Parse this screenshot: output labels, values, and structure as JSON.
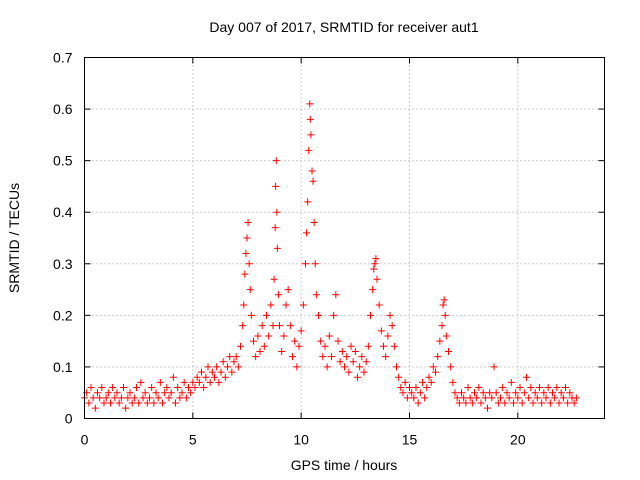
{
  "chart_data": {
    "type": "scatter",
    "title": "Day 007 of 2017, SRMTID for receiver aut1",
    "xlabel": "GPS time / hours",
    "ylabel": "SRMTID / TECUs",
    "xlim": [
      0,
      24
    ],
    "ylim": [
      0,
      0.7
    ],
    "xticks": [
      0,
      5,
      10,
      15,
      20
    ],
    "xtick_labels": [
      "0",
      "5",
      "10",
      "15",
      "20"
    ],
    "yticks": [
      0,
      0.1,
      0.2,
      0.3,
      0.4,
      0.5,
      0.6,
      0.7
    ],
    "ytick_labels": [
      "0",
      "0.1",
      "0.2",
      "0.3",
      "0.4",
      "0.5",
      "0.6",
      "0.7"
    ],
    "grid": true,
    "marker": "plus",
    "color": "#ff0000",
    "series": [
      {
        "name": "aut1",
        "points": [
          [
            0.0,
            0.04
          ],
          [
            0.1,
            0.05
          ],
          [
            0.2,
            0.03
          ],
          [
            0.3,
            0.06
          ],
          [
            0.4,
            0.04
          ],
          [
            0.5,
            0.02
          ],
          [
            0.6,
            0.05
          ],
          [
            0.7,
            0.04
          ],
          [
            0.8,
            0.06
          ],
          [
            0.9,
            0.03
          ],
          [
            1.0,
            0.04
          ],
          [
            1.1,
            0.05
          ],
          [
            1.2,
            0.03
          ],
          [
            1.3,
            0.06
          ],
          [
            1.4,
            0.04
          ],
          [
            1.5,
            0.05
          ],
          [
            1.6,
            0.03
          ],
          [
            1.7,
            0.04
          ],
          [
            1.8,
            0.06
          ],
          [
            1.9,
            0.02
          ],
          [
            2.0,
            0.04
          ],
          [
            2.1,
            0.05
          ],
          [
            2.2,
            0.03
          ],
          [
            2.3,
            0.04
          ],
          [
            2.4,
            0.06
          ],
          [
            2.5,
            0.03
          ],
          [
            2.6,
            0.07
          ],
          [
            2.7,
            0.04
          ],
          [
            2.8,
            0.05
          ],
          [
            2.9,
            0.03
          ],
          [
            3.0,
            0.04
          ],
          [
            3.1,
            0.06
          ],
          [
            3.2,
            0.03
          ],
          [
            3.3,
            0.05
          ],
          [
            3.4,
            0.04
          ],
          [
            3.5,
            0.07
          ],
          [
            3.6,
            0.03
          ],
          [
            3.7,
            0.05
          ],
          [
            3.8,
            0.06
          ],
          [
            3.9,
            0.04
          ],
          [
            4.0,
            0.05
          ],
          [
            4.1,
            0.08
          ],
          [
            4.2,
            0.03
          ],
          [
            4.3,
            0.06
          ],
          [
            4.4,
            0.04
          ],
          [
            4.5,
            0.05
          ],
          [
            4.6,
            0.07
          ],
          [
            4.7,
            0.04
          ],
          [
            4.8,
            0.06
          ],
          [
            4.9,
            0.05
          ],
          [
            5.0,
            0.07
          ],
          [
            5.1,
            0.06
          ],
          [
            5.2,
            0.08
          ],
          [
            5.3,
            0.07
          ],
          [
            5.4,
            0.09
          ],
          [
            5.5,
            0.06
          ],
          [
            5.6,
            0.08
          ],
          [
            5.7,
            0.1
          ],
          [
            5.8,
            0.07
          ],
          [
            5.9,
            0.09
          ],
          [
            6.0,
            0.08
          ],
          [
            6.1,
            0.1
          ],
          [
            6.2,
            0.07
          ],
          [
            6.3,
            0.09
          ],
          [
            6.4,
            0.11
          ],
          [
            6.5,
            0.08
          ],
          [
            6.6,
            0.1
          ],
          [
            6.7,
            0.12
          ],
          [
            6.8,
            0.09
          ],
          [
            6.9,
            0.11
          ],
          [
            7.0,
            0.12
          ],
          [
            7.1,
            0.1
          ],
          [
            7.2,
            0.14
          ],
          [
            7.3,
            0.18
          ],
          [
            7.35,
            0.22
          ],
          [
            7.4,
            0.28
          ],
          [
            7.45,
            0.32
          ],
          [
            7.5,
            0.35
          ],
          [
            7.55,
            0.38
          ],
          [
            7.6,
            0.3
          ],
          [
            7.65,
            0.25
          ],
          [
            7.7,
            0.2
          ],
          [
            7.8,
            0.15
          ],
          [
            7.9,
            0.12
          ],
          [
            8.0,
            0.16
          ],
          [
            8.1,
            0.13
          ],
          [
            8.2,
            0.18
          ],
          [
            8.3,
            0.14
          ],
          [
            8.4,
            0.2
          ],
          [
            8.5,
            0.16
          ],
          [
            8.6,
            0.22
          ],
          [
            8.7,
            0.18
          ],
          [
            8.75,
            0.27
          ],
          [
            8.8,
            0.37
          ],
          [
            8.82,
            0.45
          ],
          [
            8.85,
            0.5
          ],
          [
            8.88,
            0.4
          ],
          [
            8.9,
            0.33
          ],
          [
            8.95,
            0.24
          ],
          [
            9.0,
            0.18
          ],
          [
            9.1,
            0.13
          ],
          [
            9.2,
            0.16
          ],
          [
            9.3,
            0.22
          ],
          [
            9.4,
            0.25
          ],
          [
            9.5,
            0.18
          ],
          [
            9.6,
            0.12
          ],
          [
            9.7,
            0.15
          ],
          [
            9.8,
            0.1
          ],
          [
            9.9,
            0.14
          ],
          [
            10.0,
            0.17
          ],
          [
            10.1,
            0.22
          ],
          [
            10.2,
            0.3
          ],
          [
            10.25,
            0.36
          ],
          [
            10.3,
            0.42
          ],
          [
            10.35,
            0.52
          ],
          [
            10.4,
            0.61
          ],
          [
            10.42,
            0.58
          ],
          [
            10.45,
            0.55
          ],
          [
            10.5,
            0.48
          ],
          [
            10.55,
            0.46
          ],
          [
            10.6,
            0.38
          ],
          [
            10.65,
            0.3
          ],
          [
            10.7,
            0.24
          ],
          [
            10.8,
            0.2
          ],
          [
            10.9,
            0.15
          ],
          [
            11.0,
            0.12
          ],
          [
            11.1,
            0.14
          ],
          [
            11.2,
            0.1
          ],
          [
            11.3,
            0.16
          ],
          [
            11.4,
            0.12
          ],
          [
            11.5,
            0.2
          ],
          [
            11.6,
            0.24
          ],
          [
            11.7,
            0.15
          ],
          [
            11.8,
            0.11
          ],
          [
            11.9,
            0.13
          ],
          [
            12.0,
            0.1
          ],
          [
            12.1,
            0.12
          ],
          [
            12.2,
            0.09
          ],
          [
            12.3,
            0.14
          ],
          [
            12.4,
            0.11
          ],
          [
            12.5,
            0.13
          ],
          [
            12.6,
            0.08
          ],
          [
            12.7,
            0.1
          ],
          [
            12.8,
            0.12
          ],
          [
            12.9,
            0.09
          ],
          [
            13.0,
            0.11
          ],
          [
            13.1,
            0.14
          ],
          [
            13.2,
            0.2
          ],
          [
            13.3,
            0.25
          ],
          [
            13.35,
            0.29
          ],
          [
            13.4,
            0.3
          ],
          [
            13.45,
            0.31
          ],
          [
            13.5,
            0.27
          ],
          [
            13.6,
            0.22
          ],
          [
            13.7,
            0.17
          ],
          [
            13.8,
            0.14
          ],
          [
            13.9,
            0.12
          ],
          [
            14.0,
            0.16
          ],
          [
            14.1,
            0.2
          ],
          [
            14.2,
            0.18
          ],
          [
            14.3,
            0.14
          ],
          [
            14.4,
            0.1
          ],
          [
            14.5,
            0.08
          ],
          [
            14.6,
            0.06
          ],
          [
            14.7,
            0.05
          ],
          [
            14.8,
            0.07
          ],
          [
            14.9,
            0.04
          ],
          [
            15.0,
            0.06
          ],
          [
            15.1,
            0.05
          ],
          [
            15.2,
            0.04
          ],
          [
            15.3,
            0.06
          ],
          [
            15.4,
            0.03
          ],
          [
            15.5,
            0.05
          ],
          [
            15.6,
            0.07
          ],
          [
            15.7,
            0.04
          ],
          [
            15.8,
            0.06
          ],
          [
            15.9,
            0.08
          ],
          [
            16.0,
            0.07
          ],
          [
            16.1,
            0.1
          ],
          [
            16.2,
            0.09
          ],
          [
            16.3,
            0.12
          ],
          [
            16.4,
            0.15
          ],
          [
            16.5,
            0.18
          ],
          [
            16.55,
            0.22
          ],
          [
            16.6,
            0.23
          ],
          [
            16.65,
            0.2
          ],
          [
            16.7,
            0.16
          ],
          [
            16.8,
            0.13
          ],
          [
            16.9,
            0.1
          ],
          [
            17.0,
            0.07
          ],
          [
            17.1,
            0.05
          ],
          [
            17.2,
            0.04
          ],
          [
            17.3,
            0.03
          ],
          [
            17.4,
            0.05
          ],
          [
            17.5,
            0.04
          ],
          [
            17.6,
            0.03
          ],
          [
            17.7,
            0.06
          ],
          [
            17.8,
            0.04
          ],
          [
            17.9,
            0.03
          ],
          [
            18.0,
            0.05
          ],
          [
            18.1,
            0.04
          ],
          [
            18.2,
            0.06
          ],
          [
            18.3,
            0.03
          ],
          [
            18.4,
            0.05
          ],
          [
            18.5,
            0.04
          ],
          [
            18.6,
            0.02
          ],
          [
            18.7,
            0.05
          ],
          [
            18.8,
            0.04
          ],
          [
            18.9,
            0.1
          ],
          [
            19.0,
            0.05
          ],
          [
            19.1,
            0.03
          ],
          [
            19.2,
            0.04
          ],
          [
            19.3,
            0.06
          ],
          [
            19.4,
            0.03
          ],
          [
            19.5,
            0.05
          ],
          [
            19.6,
            0.04
          ],
          [
            19.7,
            0.07
          ],
          [
            19.8,
            0.03
          ],
          [
            19.9,
            0.05
          ],
          [
            20.0,
            0.04
          ],
          [
            20.1,
            0.06
          ],
          [
            20.2,
            0.03
          ],
          [
            20.3,
            0.05
          ],
          [
            20.4,
            0.08
          ],
          [
            20.5,
            0.04
          ],
          [
            20.6,
            0.06
          ],
          [
            20.7,
            0.03
          ],
          [
            20.8,
            0.05
          ],
          [
            20.9,
            0.04
          ],
          [
            21.0,
            0.06
          ],
          [
            21.1,
            0.03
          ],
          [
            21.2,
            0.05
          ],
          [
            21.3,
            0.04
          ],
          [
            21.4,
            0.06
          ],
          [
            21.5,
            0.03
          ],
          [
            21.6,
            0.05
          ],
          [
            21.7,
            0.04
          ],
          [
            21.8,
            0.06
          ],
          [
            21.9,
            0.03
          ],
          [
            22.0,
            0.05
          ],
          [
            22.1,
            0.04
          ],
          [
            22.2,
            0.06
          ],
          [
            22.3,
            0.03
          ],
          [
            22.4,
            0.05
          ],
          [
            22.5,
            0.04
          ],
          [
            22.6,
            0.03
          ],
          [
            22.7,
            0.04
          ]
        ]
      }
    ]
  }
}
